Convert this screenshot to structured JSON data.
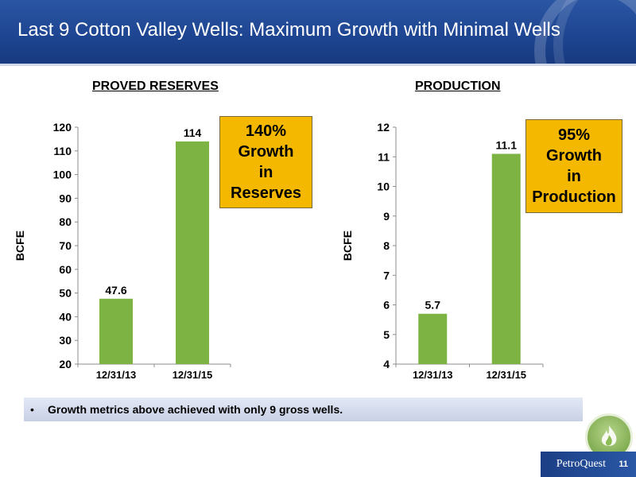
{
  "header": {
    "title": "Last 9 Cotton Valley Wells: Maximum Growth with Minimal Wells"
  },
  "chart_data": [
    {
      "type": "bar",
      "title": "PROVED RESERVES",
      "ylabel": "BCFE",
      "categories": [
        "12/31/13",
        "12/31/15"
      ],
      "values": [
        47.6,
        114
      ],
      "value_labels": [
        "47.6",
        "114"
      ],
      "ylim": [
        20,
        120
      ],
      "yticks": [
        20,
        30,
        40,
        50,
        60,
        70,
        80,
        90,
        100,
        110,
        120
      ],
      "grid": false,
      "color": "#7cb342",
      "callout": [
        "140%",
        "Growth",
        "in",
        "Reserves"
      ]
    },
    {
      "type": "bar",
      "title": "PRODUCTION",
      "ylabel": "BCFE",
      "categories": [
        "12/31/13",
        "12/31/15"
      ],
      "values": [
        5.7,
        11.1
      ],
      "value_labels": [
        "5.7",
        "11.1"
      ],
      "ylim": [
        4,
        12
      ],
      "yticks": [
        4,
        5,
        6,
        7,
        8,
        9,
        10,
        11,
        12
      ],
      "grid": false,
      "color": "#7cb342",
      "callout": [
        "95%",
        "Growth",
        "in",
        "Production"
      ]
    }
  ],
  "note": {
    "bullet": "•",
    "text": "Growth metrics above achieved with only 9 gross wells."
  },
  "footer": {
    "brand": "PetroQuest",
    "page": "11"
  },
  "colors": {
    "header": "#1d4490",
    "bar": "#7cb342",
    "callout": "#f5b800"
  }
}
